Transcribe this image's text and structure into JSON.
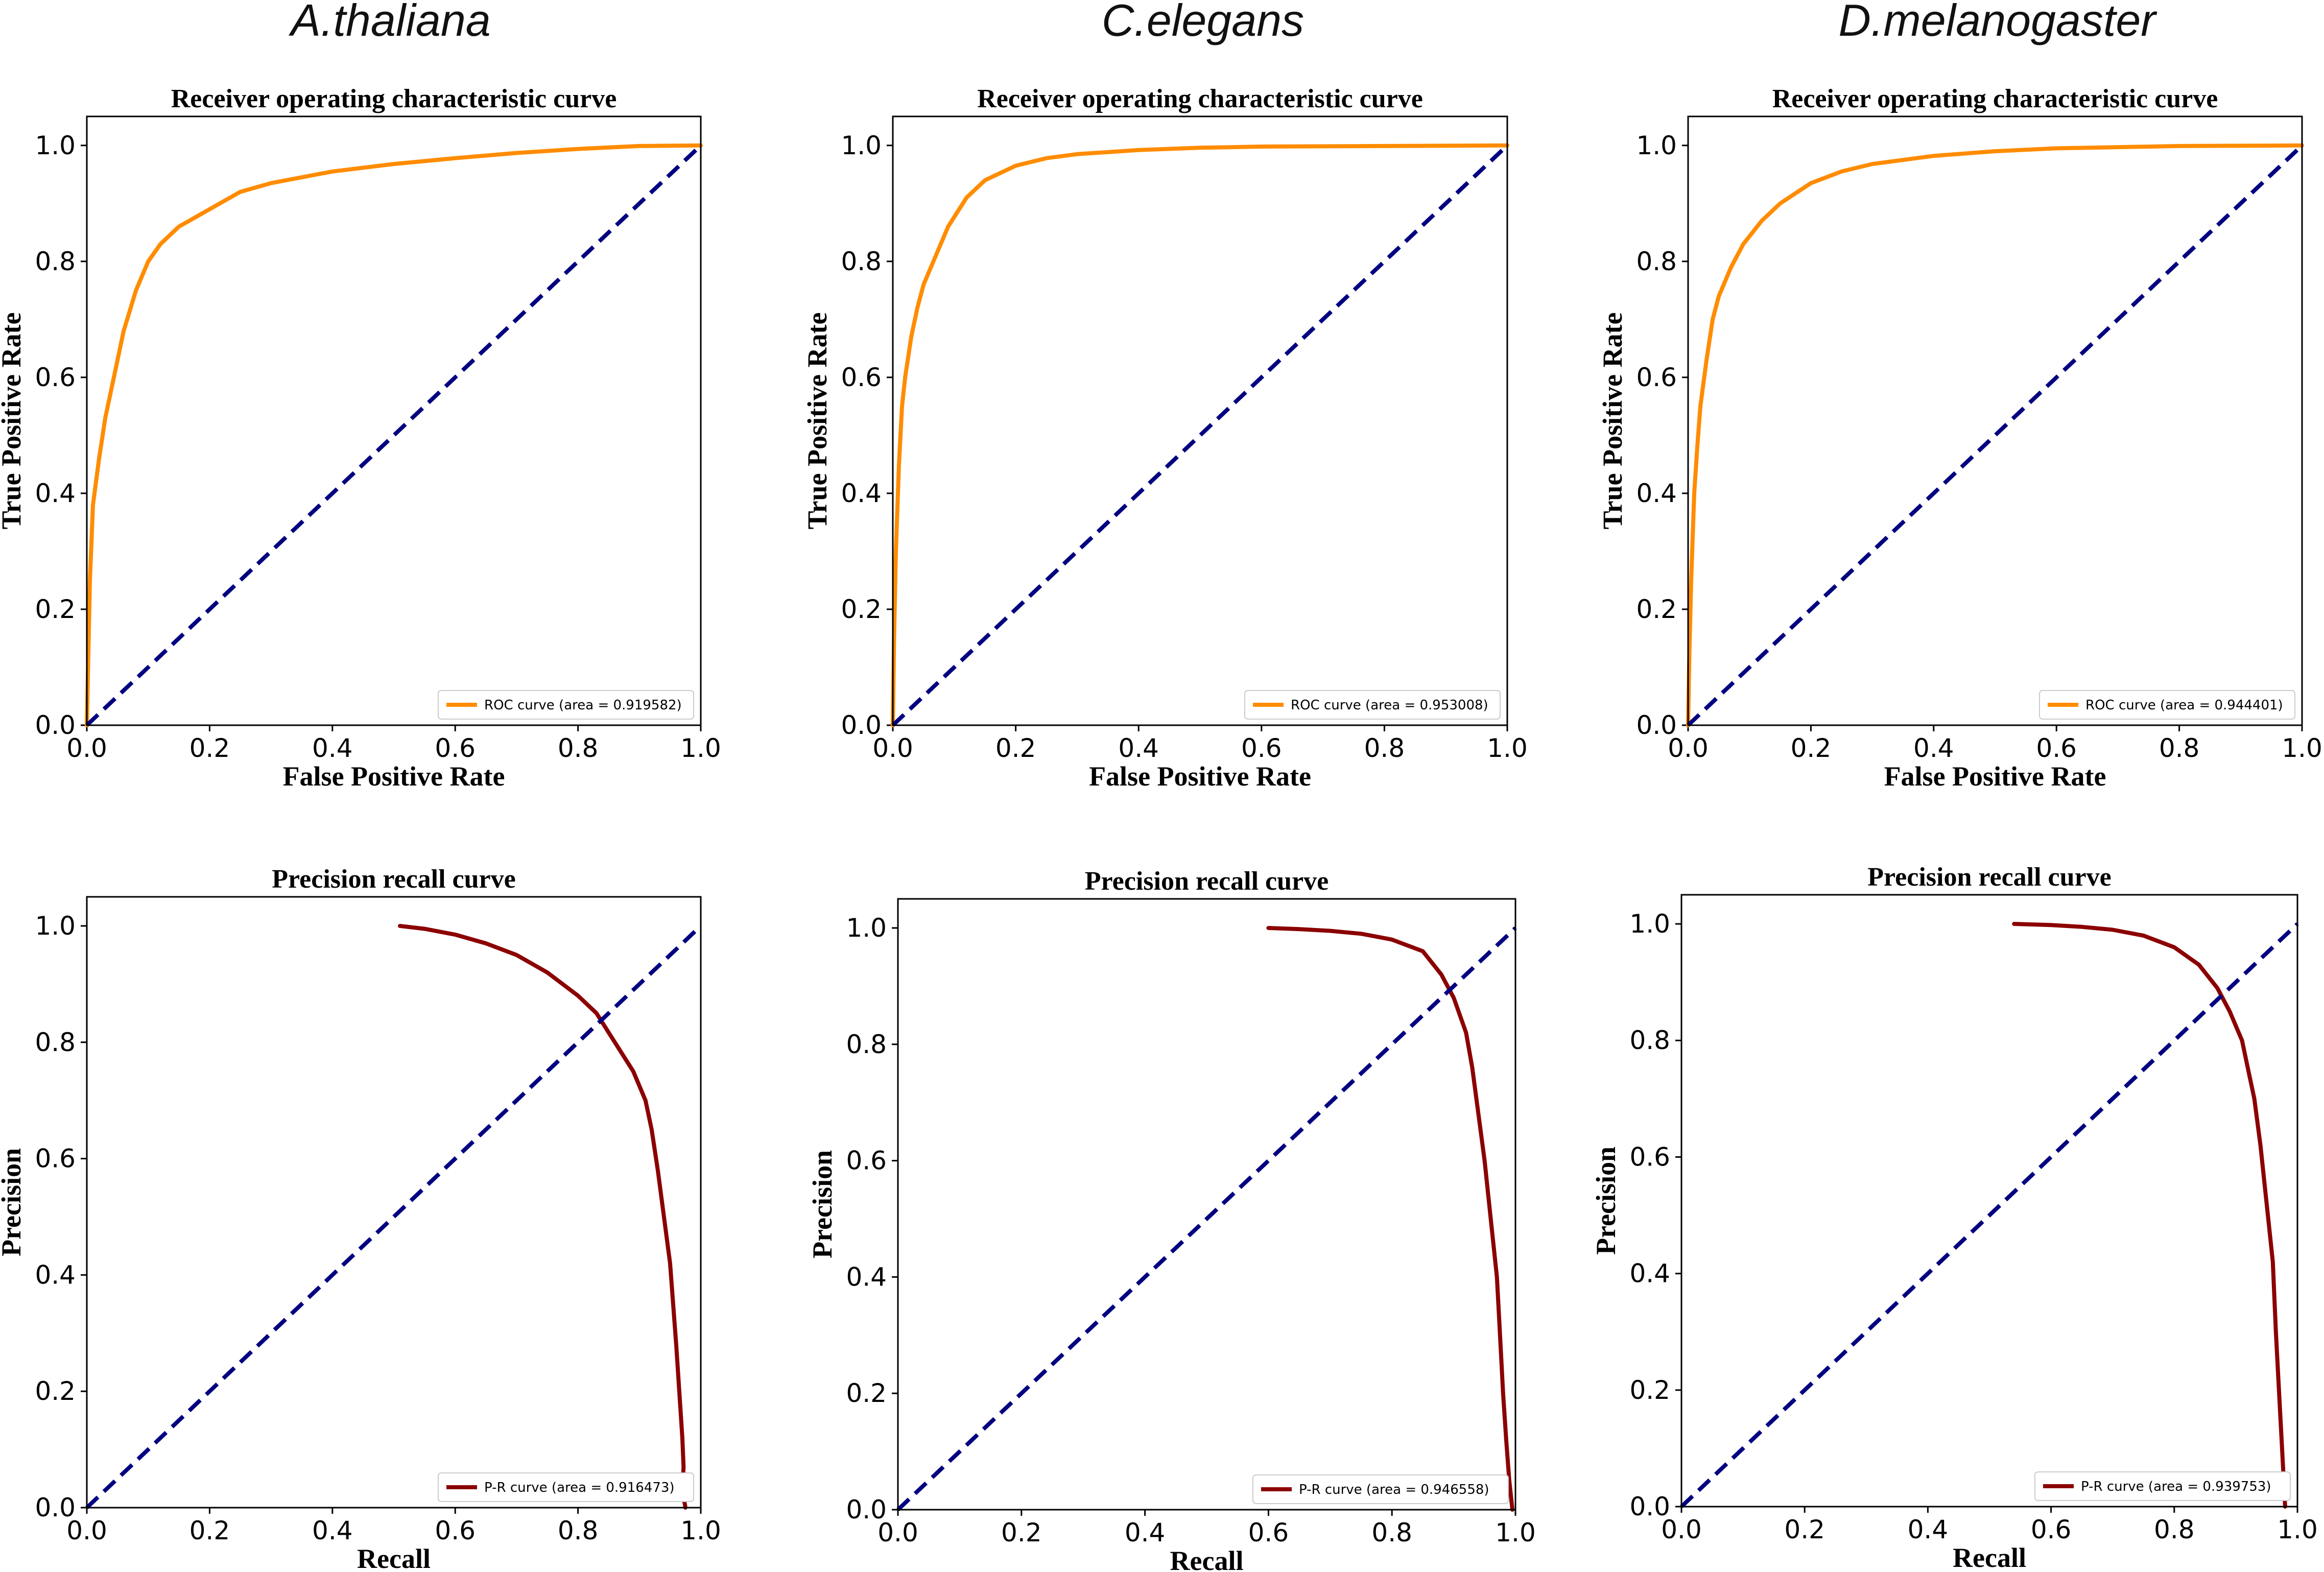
{
  "figure": {
    "species_titles": [
      "A.thaliana",
      "C.elegans",
      "D.melanogaster"
    ]
  },
  "colors": {
    "roc_curve": "#ff8c00",
    "pr_curve": "#8b0000",
    "diagonal": "#000080"
  },
  "chart_data": [
    {
      "type": "line",
      "kind": "roc",
      "species": "A.thaliana",
      "title": "Receiver operating characteristic curve",
      "xlabel": "False Positive Rate",
      "ylabel": "True Positive Rate",
      "xlim": [
        0,
        1
      ],
      "ylim": [
        0,
        1.05
      ],
      "xticks": [
        "0.0",
        "0.2",
        "0.4",
        "0.6",
        "0.8",
        "1.0"
      ],
      "yticks": [
        "0.0",
        "0.2",
        "0.4",
        "0.6",
        "0.8",
        "1.0"
      ],
      "legend": "ROC curve (area = 0.919582)",
      "legend_loc": "lower right",
      "series": [
        {
          "name": "ROC curve (area = 0.919582)",
          "color": "#ff8c00",
          "x": [
            0,
            0.002,
            0.005,
            0.01,
            0.02,
            0.03,
            0.04,
            0.05,
            0.06,
            0.08,
            0.1,
            0.12,
            0.15,
            0.2,
            0.25,
            0.3,
            0.4,
            0.5,
            0.6,
            0.7,
            0.8,
            0.9,
            1.0
          ],
          "y": [
            0,
            0.1,
            0.25,
            0.38,
            0.46,
            0.53,
            0.58,
            0.63,
            0.68,
            0.75,
            0.8,
            0.83,
            0.86,
            0.89,
            0.92,
            0.935,
            0.955,
            0.968,
            0.978,
            0.987,
            0.994,
            0.999,
            1.0
          ]
        },
        {
          "name": "diagonal",
          "color": "#000080",
          "dashed": true,
          "x": [
            0,
            1
          ],
          "y": [
            0,
            1
          ]
        }
      ]
    },
    {
      "type": "line",
      "kind": "roc",
      "species": "C.elegans",
      "title": "Receiver operating characteristic curve",
      "xlabel": "False Positive Rate",
      "ylabel": "True Positive Rate",
      "xlim": [
        0,
        1
      ],
      "ylim": [
        0,
        1.05
      ],
      "xticks": [
        "0.0",
        "0.2",
        "0.4",
        "0.6",
        "0.8",
        "1.0"
      ],
      "yticks": [
        "0.0",
        "0.2",
        "0.4",
        "0.6",
        "0.8",
        "1.0"
      ],
      "legend": "ROC curve (area = 0.953008)",
      "legend_loc": "lower right",
      "series": [
        {
          "name": "ROC curve (area = 0.953008)",
          "color": "#ff8c00",
          "x": [
            0,
            0.002,
            0.005,
            0.01,
            0.015,
            0.02,
            0.03,
            0.04,
            0.05,
            0.07,
            0.09,
            0.12,
            0.15,
            0.2,
            0.25,
            0.3,
            0.4,
            0.5,
            0.6,
            0.8,
            1.0
          ],
          "y": [
            0,
            0.15,
            0.3,
            0.45,
            0.55,
            0.6,
            0.67,
            0.72,
            0.76,
            0.81,
            0.86,
            0.91,
            0.94,
            0.965,
            0.978,
            0.985,
            0.992,
            0.996,
            0.998,
            0.999,
            1.0
          ]
        },
        {
          "name": "diagonal",
          "color": "#000080",
          "dashed": true,
          "x": [
            0,
            1
          ],
          "y": [
            0,
            1
          ]
        }
      ]
    },
    {
      "type": "line",
      "kind": "roc",
      "species": "D.melanogaster",
      "title": "Receiver operating characteristic curve",
      "xlabel": "False Positive Rate",
      "ylabel": "True Positive Rate",
      "xlim": [
        0,
        1
      ],
      "ylim": [
        0,
        1.05
      ],
      "xticks": [
        "0.0",
        "0.2",
        "0.4",
        "0.6",
        "0.8",
        "1.0"
      ],
      "yticks": [
        "0.0",
        "0.2",
        "0.4",
        "0.6",
        "0.8",
        "1.0"
      ],
      "legend": "ROC curve (area = 0.944401)",
      "legend_loc": "lower right",
      "series": [
        {
          "name": "ROC curve (area = 0.944401)",
          "color": "#ff8c00",
          "x": [
            0,
            0.002,
            0.005,
            0.01,
            0.015,
            0.02,
            0.03,
            0.04,
            0.05,
            0.07,
            0.09,
            0.12,
            0.15,
            0.2,
            0.25,
            0.3,
            0.4,
            0.5,
            0.6,
            0.8,
            1.0
          ],
          "y": [
            0,
            0.12,
            0.25,
            0.4,
            0.48,
            0.55,
            0.63,
            0.7,
            0.74,
            0.79,
            0.83,
            0.87,
            0.9,
            0.935,
            0.955,
            0.968,
            0.982,
            0.99,
            0.995,
            0.999,
            1.0
          ]
        },
        {
          "name": "diagonal",
          "color": "#000080",
          "dashed": true,
          "x": [
            0,
            1
          ],
          "y": [
            0,
            1
          ]
        }
      ]
    },
    {
      "type": "line",
      "kind": "pr",
      "species": "A.thaliana",
      "title": "Precision recall curve",
      "xlabel": "Recall",
      "ylabel": "Precision",
      "xlim": [
        0,
        1
      ],
      "ylim": [
        0,
        1.05
      ],
      "xticks": [
        "0.0",
        "0.2",
        "0.4",
        "0.6",
        "0.8",
        "1.0"
      ],
      "yticks": [
        "0.0",
        "0.2",
        "0.4",
        "0.6",
        "0.8",
        "1.0"
      ],
      "legend": "P-R curve (area = 0.916473)",
      "legend_loc": "lower right",
      "series": [
        {
          "name": "P-R curve (area = 0.916473)",
          "color": "#8b0000",
          "x": [
            0.51,
            0.55,
            0.6,
            0.65,
            0.7,
            0.75,
            0.8,
            0.83,
            0.86,
            0.89,
            0.91,
            0.92,
            0.93,
            0.94,
            0.95,
            0.955,
            0.96,
            0.965,
            0.97,
            0.972,
            0.97,
            0.975
          ],
          "y": [
            1.0,
            0.995,
            0.985,
            0.97,
            0.95,
            0.92,
            0.88,
            0.85,
            0.8,
            0.75,
            0.7,
            0.65,
            0.58,
            0.5,
            0.42,
            0.35,
            0.28,
            0.2,
            0.12,
            0.07,
            0.03,
            0.0
          ]
        },
        {
          "name": "diagonal",
          "color": "#000080",
          "dashed": true,
          "x": [
            0,
            1
          ],
          "y": [
            0,
            1
          ]
        }
      ]
    },
    {
      "type": "line",
      "kind": "pr",
      "species": "C.elegans",
      "title": "Precision recall curve",
      "xlabel": "Recall",
      "ylabel": "Precision",
      "xlim": [
        0,
        1
      ],
      "ylim": [
        0,
        1.05
      ],
      "xticks": [
        "0.0",
        "0.2",
        "0.4",
        "0.6",
        "0.8",
        "1.0"
      ],
      "yticks": [
        "0.0",
        "0.2",
        "0.4",
        "0.6",
        "0.8",
        "1.0"
      ],
      "legend": "P-R curve (area = 0.946558)",
      "legend_loc": "lower right",
      "series": [
        {
          "name": "P-R curve (area = 0.946558)",
          "color": "#8b0000",
          "x": [
            0.6,
            0.65,
            0.7,
            0.75,
            0.8,
            0.85,
            0.88,
            0.9,
            0.92,
            0.93,
            0.94,
            0.95,
            0.96,
            0.97,
            0.975,
            0.98,
            0.985,
            0.99,
            0.995
          ],
          "y": [
            1.0,
            0.998,
            0.995,
            0.99,
            0.98,
            0.96,
            0.92,
            0.88,
            0.82,
            0.76,
            0.68,
            0.6,
            0.5,
            0.4,
            0.3,
            0.2,
            0.12,
            0.05,
            0.0
          ]
        },
        {
          "name": "diagonal",
          "color": "#000080",
          "dashed": true,
          "x": [
            0,
            1
          ],
          "y": [
            0,
            1
          ]
        }
      ]
    },
    {
      "type": "line",
      "kind": "pr",
      "species": "D.melanogaster",
      "title": "Precision recall curve",
      "xlabel": "Recall",
      "ylabel": "Precision",
      "xlim": [
        0,
        1
      ],
      "ylim": [
        0,
        1.05
      ],
      "xticks": [
        "0.0",
        "0.2",
        "0.4",
        "0.6",
        "0.8",
        "1.0"
      ],
      "yticks": [
        "0.0",
        "0.2",
        "0.4",
        "0.6",
        "0.8",
        "1.0"
      ],
      "legend": "P-R curve (area = 0.939753)",
      "legend_loc": "lower right",
      "series": [
        {
          "name": "P-R curve (area = 0.939753)",
          "color": "#8b0000",
          "x": [
            0.54,
            0.6,
            0.65,
            0.7,
            0.75,
            0.8,
            0.84,
            0.87,
            0.89,
            0.91,
            0.92,
            0.93,
            0.94,
            0.95,
            0.96,
            0.965,
            0.97,
            0.975,
            0.98
          ],
          "y": [
            1.0,
            0.998,
            0.995,
            0.99,
            0.98,
            0.96,
            0.93,
            0.89,
            0.85,
            0.8,
            0.75,
            0.7,
            0.62,
            0.52,
            0.42,
            0.3,
            0.2,
            0.1,
            0.0
          ]
        },
        {
          "name": "diagonal",
          "color": "#000080",
          "dashed": true,
          "x": [
            0,
            1
          ],
          "y": [
            0,
            1
          ]
        }
      ]
    }
  ]
}
